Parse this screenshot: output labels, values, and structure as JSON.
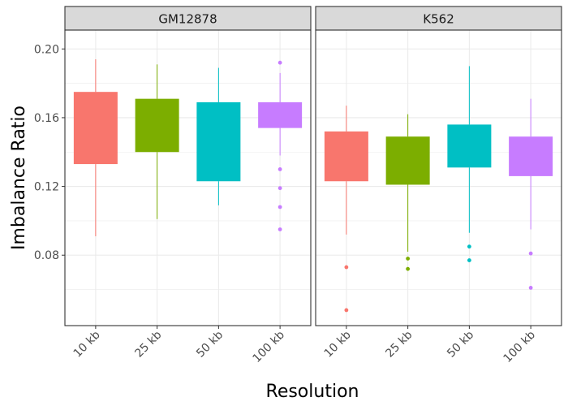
{
  "chart_data": {
    "type": "boxplot",
    "xlabel": "Resolution",
    "ylabel": "Imbalance Ratio",
    "ylim": [
      0.039,
      0.211
    ],
    "yticks": [
      0.08,
      0.12,
      0.16,
      0.2
    ],
    "ytick_labels": [
      "0.08",
      "0.12",
      "0.16",
      "0.20"
    ],
    "categories": [
      "10 kb",
      "25 kb",
      "50 kb",
      "100 kb"
    ],
    "colors": [
      "#F8766D",
      "#7CAE00",
      "#00BFC4",
      "#C77CFF"
    ],
    "panel_colors": {
      "strip_bg": "#D9D9D9",
      "grid": "#EBEBEB",
      "border": "#333333"
    },
    "grid": true,
    "facets": [
      {
        "name": "GM12878",
        "boxes": [
          {
            "category": "10 kb",
            "whisker_low": 0.091,
            "q1": 0.133,
            "q3": 0.175,
            "whisker_high": 0.194,
            "outliers": []
          },
          {
            "category": "25 kb",
            "whisker_low": 0.101,
            "q1": 0.14,
            "q3": 0.171,
            "whisker_high": 0.191,
            "outliers": []
          },
          {
            "category": "50 kb",
            "whisker_low": 0.109,
            "q1": 0.123,
            "q3": 0.169,
            "whisker_high": 0.189,
            "outliers": []
          },
          {
            "category": "100 kb",
            "whisker_low": 0.138,
            "q1": 0.154,
            "q3": 0.169,
            "whisker_high": 0.186,
            "outliers": [
              0.192,
              0.13,
              0.119,
              0.108,
              0.095
            ]
          }
        ]
      },
      {
        "name": "K562",
        "boxes": [
          {
            "category": "10 kb",
            "whisker_low": 0.092,
            "q1": 0.123,
            "q3": 0.152,
            "whisker_high": 0.167,
            "outliers": [
              0.073,
              0.048
            ]
          },
          {
            "category": "25 kb",
            "whisker_low": 0.082,
            "q1": 0.121,
            "q3": 0.149,
            "whisker_high": 0.162,
            "outliers": [
              0.078,
              0.072
            ]
          },
          {
            "category": "50 kb",
            "whisker_low": 0.093,
            "q1": 0.131,
            "q3": 0.156,
            "whisker_high": 0.19,
            "outliers": [
              0.085,
              0.077
            ]
          },
          {
            "category": "100 kb",
            "whisker_low": 0.095,
            "q1": 0.126,
            "q3": 0.149,
            "whisker_high": 0.171,
            "outliers": [
              0.081,
              0.061
            ]
          }
        ]
      }
    ]
  }
}
